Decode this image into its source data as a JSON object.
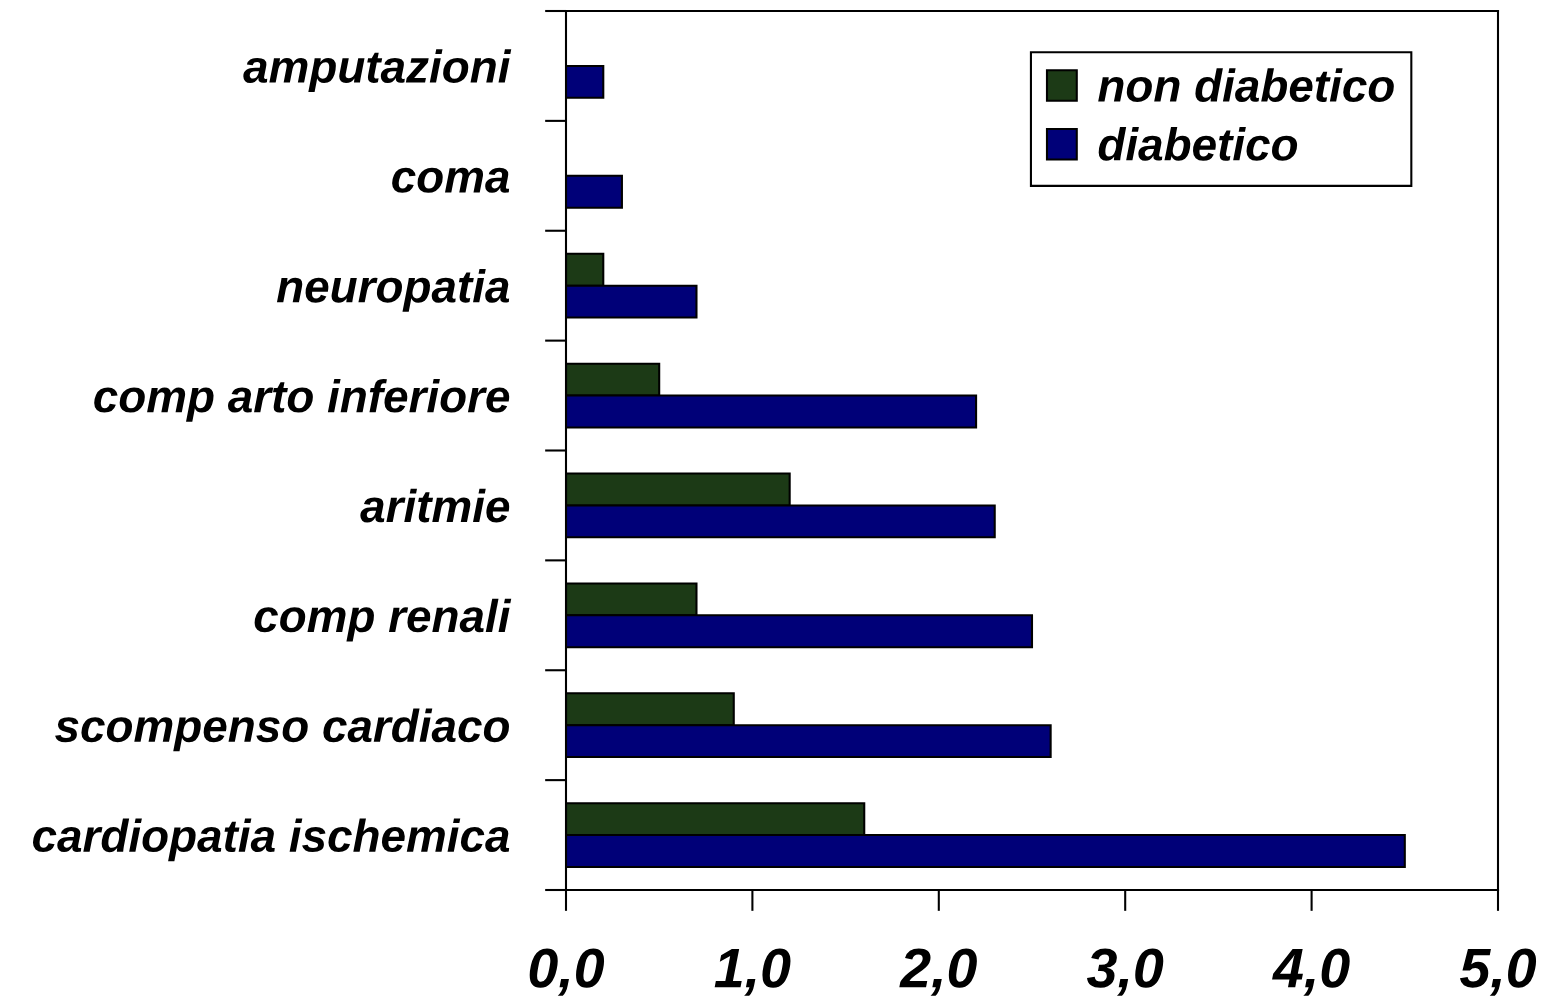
{
  "chart_data": {
    "type": "bar",
    "orientation": "horizontal",
    "categories": [
      "amputazioni",
      "coma",
      "neuropatia",
      "comp arto inferiore",
      "aritmie",
      "comp renali",
      "scompenso cardiaco",
      "cardiopatia ischemica"
    ],
    "series": [
      {
        "name": "non diabetico",
        "color": "#1c3a16",
        "values": [
          null,
          null,
          0.2,
          0.5,
          1.2,
          0.7,
          0.9,
          1.6
        ]
      },
      {
        "name": "diabetico",
        "color": "#000078",
        "values": [
          0.2,
          0.3,
          0.7,
          2.2,
          2.3,
          2.5,
          2.6,
          4.5
        ]
      }
    ],
    "xlim": [
      0,
      5
    ],
    "xticks": [
      {
        "value": 0,
        "label": "0,0"
      },
      {
        "value": 1,
        "label": "1,0"
      },
      {
        "value": 2,
        "label": "2,0"
      },
      {
        "value": 3,
        "label": "3,0"
      },
      {
        "value": 4,
        "label": "4,0"
      },
      {
        "value": 5,
        "label": "5,0"
      }
    ],
    "legend": "top right",
    "grid": false
  }
}
